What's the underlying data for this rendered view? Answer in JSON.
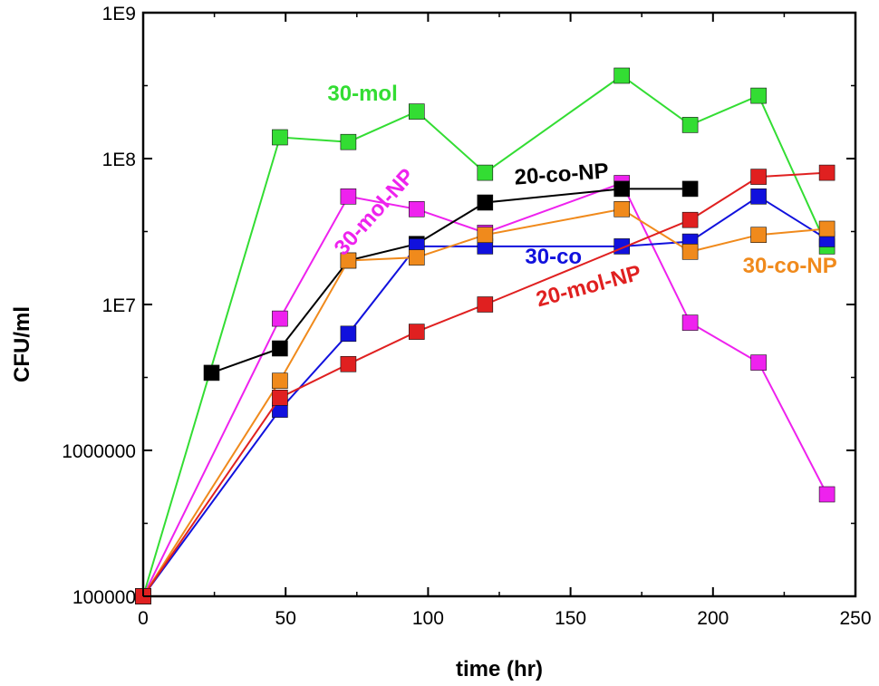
{
  "chart_data": {
    "type": "line",
    "title": "",
    "xlabel": "time (hr)",
    "ylabel": "CFU/ml",
    "xlim": [
      0,
      250
    ],
    "ylim": [
      100000,
      1000000000
    ],
    "yscale": "log",
    "xticks": [
      0,
      50,
      100,
      150,
      200,
      250
    ],
    "xtick_labels": [
      "0",
      "50",
      "100",
      "150",
      "200",
      "250"
    ],
    "yticks": [
      100000,
      1000000,
      10000000,
      100000000,
      1000000000
    ],
    "ytick_labels": [
      "100000",
      "1000000",
      "1E7",
      "1E8",
      "1E9"
    ],
    "grid": false,
    "marker": "square",
    "series": [
      {
        "name": "30-mol",
        "label": "30-mol",
        "color": "#33dd33",
        "x": [
          0,
          48,
          72,
          96,
          120,
          168,
          192,
          216,
          240
        ],
        "y": [
          100000,
          140000000,
          130000000,
          210000000,
          80000000,
          370000000,
          170000000,
          270000000,
          25000000
        ]
      },
      {
        "name": "30-mol-NP",
        "label": "30-mol-NP",
        "color": "#ee22ee",
        "x": [
          0,
          48,
          72,
          96,
          120,
          168,
          192,
          216,
          240
        ],
        "y": [
          100000,
          8000000,
          55000000,
          45000000,
          31000000,
          68000000,
          7500000,
          4000000,
          500000
        ]
      },
      {
        "name": "20-co-NP",
        "label": "20-co-NP",
        "color": "#000000",
        "x": [
          24,
          48,
          72,
          96,
          120,
          168,
          192
        ],
        "y": [
          3400000,
          5000000,
          20000000,
          26000000,
          50000000,
          62000000,
          62000000
        ]
      },
      {
        "name": "30-co",
        "label": "30-co",
        "color": "#1111dd",
        "x": [
          0,
          48,
          72,
          96,
          120,
          168,
          192,
          216,
          240
        ],
        "y": [
          100000,
          1900000,
          6300000,
          25000000,
          25000000,
          25000000,
          27000000,
          55000000,
          28000000
        ]
      },
      {
        "name": "30-co-NP",
        "label": "30-co-NP",
        "color": "#f08a1c",
        "x": [
          0,
          48,
          72,
          96,
          120,
          168,
          192,
          216,
          240
        ],
        "y": [
          100000,
          3000000,
          20000000,
          21000000,
          30000000,
          45000000,
          23000000,
          30000000,
          33000000
        ]
      },
      {
        "name": "20-mol-NP",
        "label": "20-mol-NP",
        "color": "#e02020",
        "x": [
          0,
          48,
          72,
          96,
          120,
          192,
          216,
          240
        ],
        "y": [
          100000,
          2300000,
          3900000,
          6500000,
          10000000,
          38000000,
          75000000,
          80000000
        ]
      }
    ],
    "annotations": [
      {
        "text": "30-mol",
        "series": "30-mol",
        "x": 77,
        "y": 250000000,
        "rotate": 0
      },
      {
        "text": "30-mol-NP",
        "series": "30-mol-NP",
        "x": 83,
        "y": 40000000,
        "rotate": -48
      },
      {
        "text": "20-co-NP",
        "series": "20-co-NP",
        "x": 147,
        "y": 70000000,
        "rotate": -4
      },
      {
        "text": "30-co",
        "series": "30-co",
        "x": 144,
        "y": 19000000,
        "rotate": 0
      },
      {
        "text": "30-co-NP",
        "series": "30-co-NP",
        "x": 227,
        "y": 16500000,
        "rotate": 0
      },
      {
        "text": "20-mol-NP",
        "series": "20-mol-NP",
        "x": 157,
        "y": 12000000,
        "rotate": -15
      }
    ]
  }
}
